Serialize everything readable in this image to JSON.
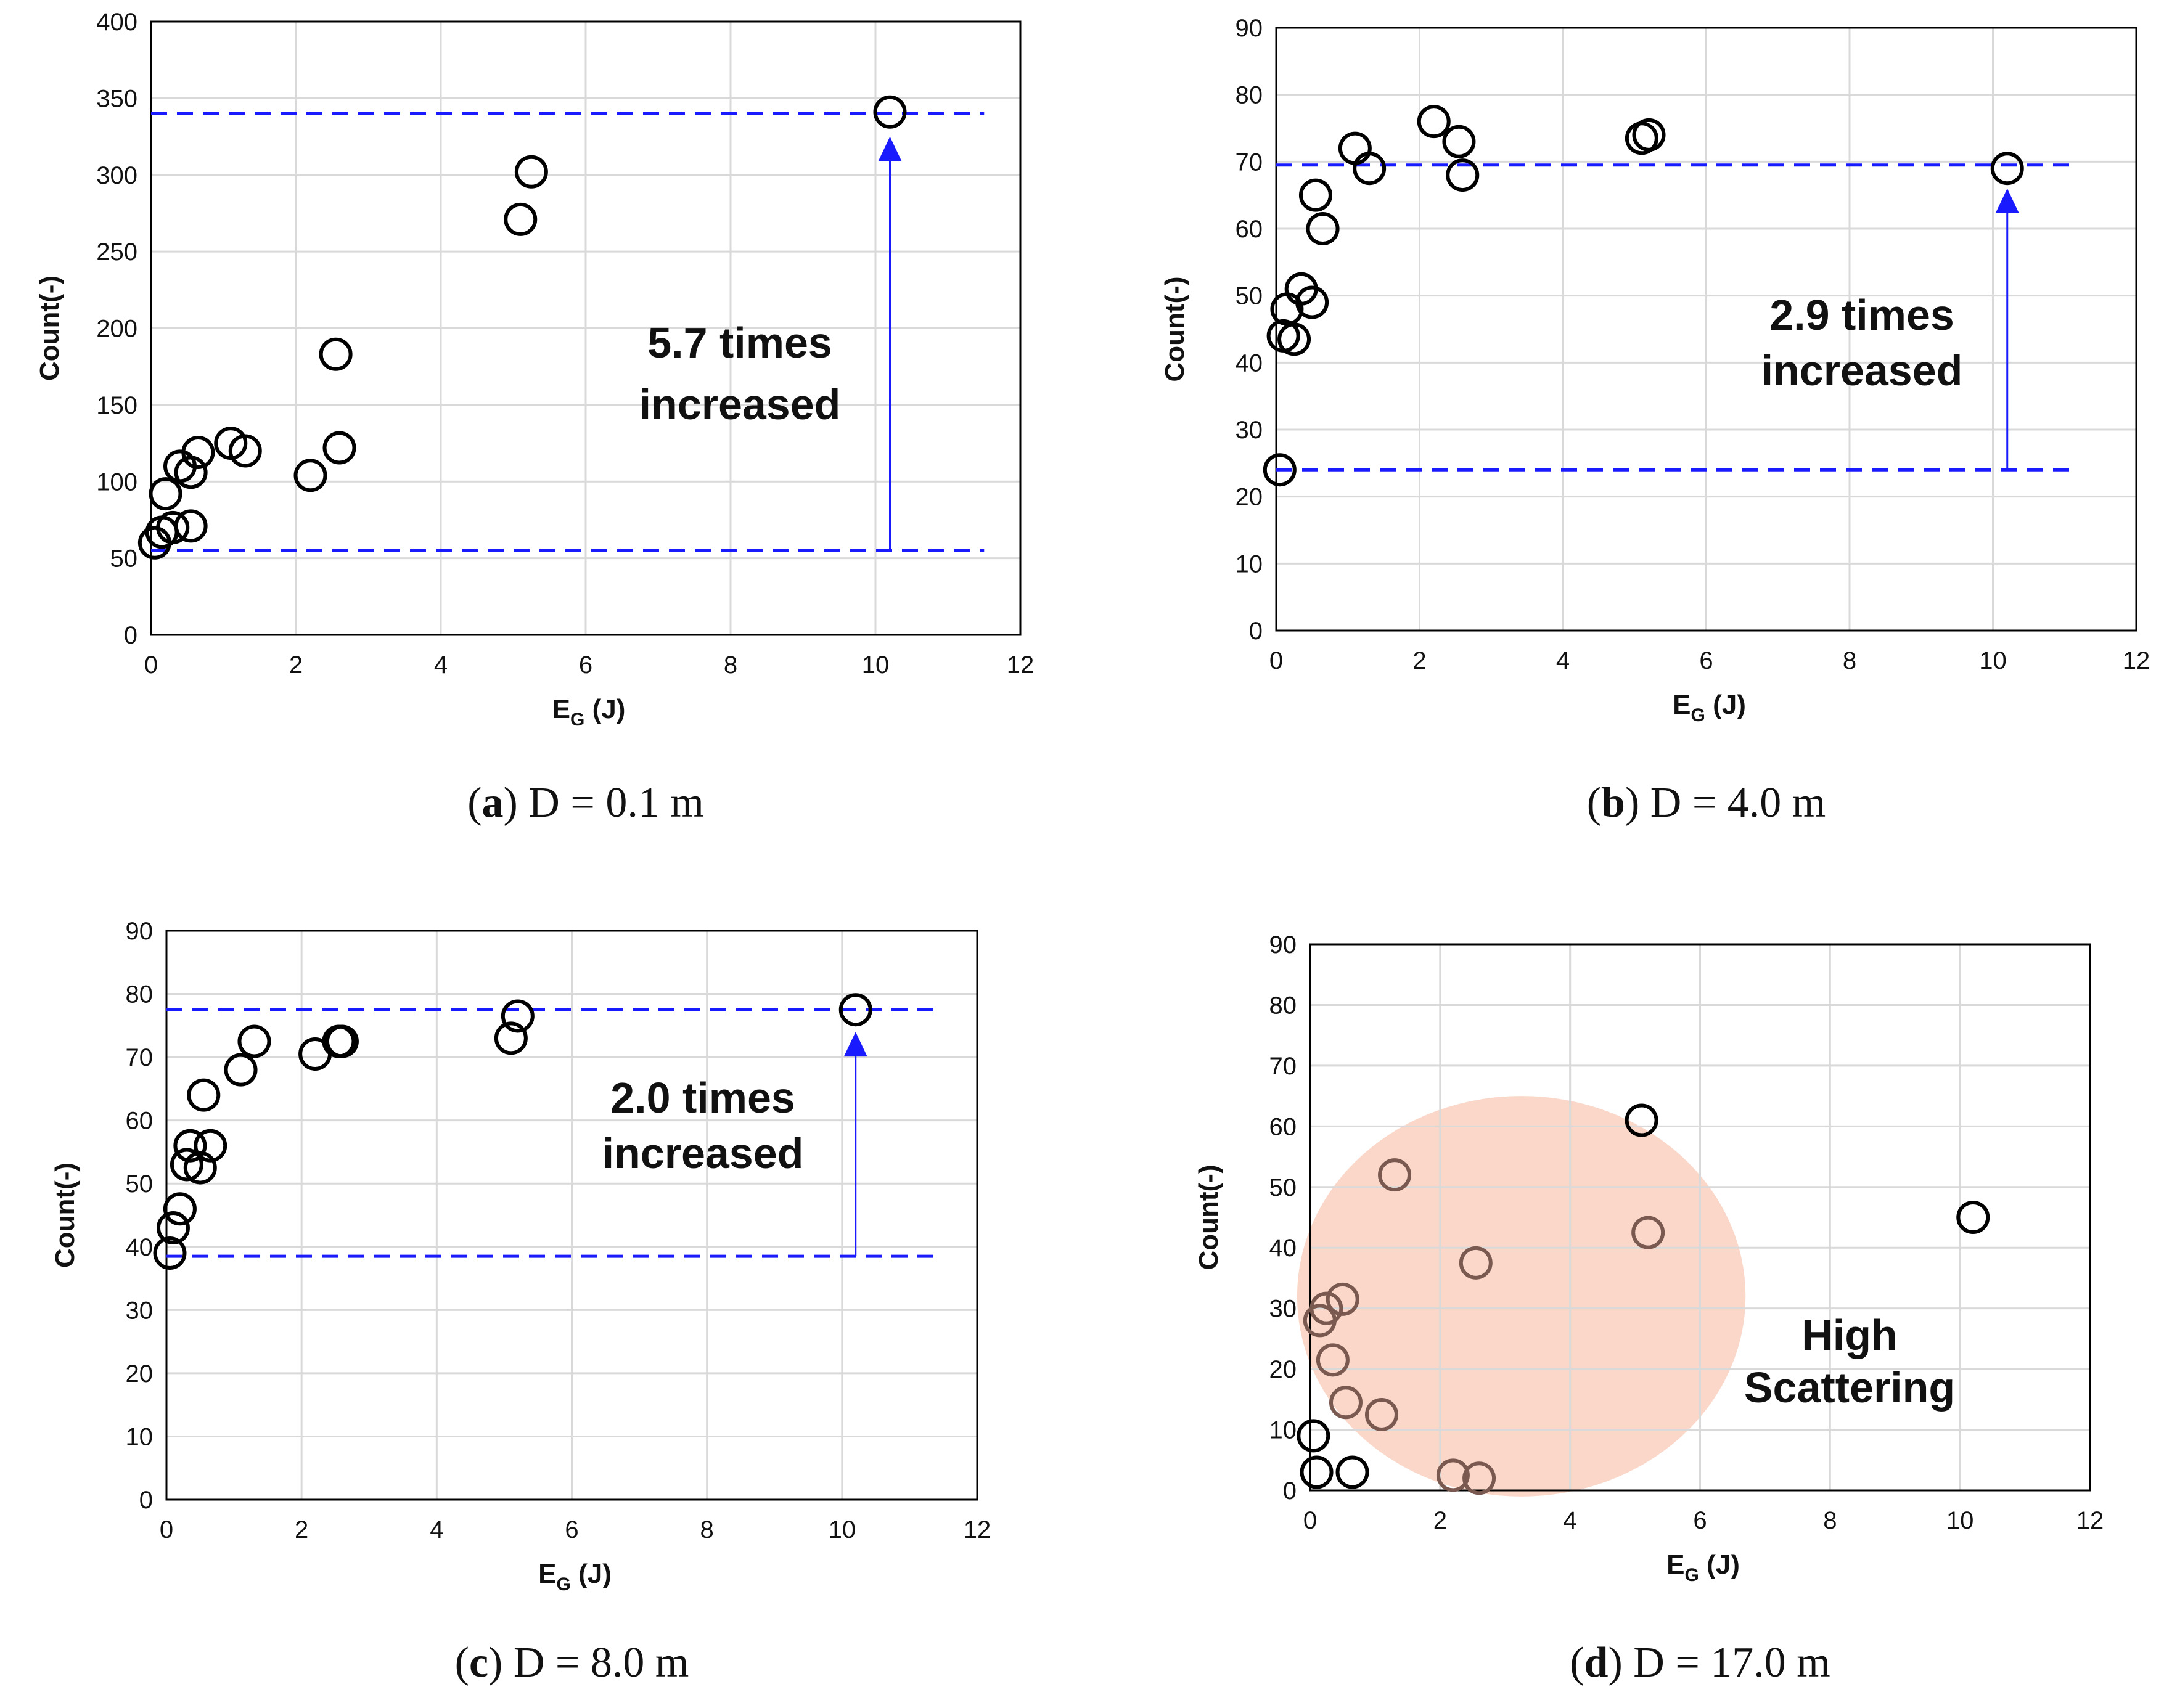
{
  "chart_data": [
    {
      "panel": "a",
      "type": "scatter",
      "xlabel": "E",
      "xlabel_sub": "G",
      "xlabel_unit": " (J)",
      "ylabel": "Count(-)",
      "xlim": [
        0,
        12
      ],
      "ylim": [
        0,
        400
      ],
      "xticks": [
        "0",
        "2",
        "4",
        "6",
        "8",
        "10",
        "12"
      ],
      "yticks": [
        "0",
        "50",
        "100",
        "150",
        "200",
        "250",
        "300",
        "350",
        "400"
      ],
      "x": [
        0.05,
        0.15,
        0.2,
        0.3,
        0.4,
        0.55,
        0.55,
        0.65,
        1.1,
        1.3,
        2.2,
        2.55,
        2.6,
        5.1,
        5.25,
        10.2
      ],
      "y": [
        60,
        67,
        92,
        70,
        110,
        106,
        71,
        119,
        125,
        120,
        104,
        183,
        122,
        271,
        302,
        341
      ],
      "point_colors": [],
      "ref_lines": [
        55,
        340
      ],
      "arrow": {
        "x": 10.2,
        "from": 55,
        "to": 325
      },
      "annotation": [
        "5.7 times",
        "increased"
      ],
      "caption_letter": "a",
      "caption_text": " D = 0.1 m"
    },
    {
      "panel": "b",
      "type": "scatter",
      "xlabel": "E",
      "xlabel_sub": "G",
      "xlabel_unit": " (J)",
      "ylabel": "Count(-)",
      "xlim": [
        0,
        12
      ],
      "ylim": [
        0,
        90
      ],
      "xticks": [
        "0",
        "2",
        "4",
        "6",
        "8",
        "10",
        "12"
      ],
      "yticks": [
        "0",
        "10",
        "20",
        "30",
        "40",
        "50",
        "60",
        "70",
        "80",
        "90"
      ],
      "x": [
        0.05,
        0.1,
        0.15,
        0.25,
        0.35,
        0.5,
        0.55,
        0.65,
        1.1,
        1.3,
        2.2,
        2.55,
        2.6,
        5.1,
        5.2,
        10.2
      ],
      "y": [
        24,
        44,
        48,
        43.5,
        51,
        49,
        65,
        60,
        72,
        69,
        76,
        73,
        68,
        73.5,
        74,
        69
      ],
      "point_colors": [],
      "ref_lines": [
        24,
        69.5
      ],
      "arrow": {
        "x": 10.2,
        "from": 24,
        "to": 66
      },
      "annotation": [
        "2.9 times",
        "increased"
      ],
      "caption_letter": "b",
      "caption_text": " D = 4.0 m"
    },
    {
      "panel": "c",
      "type": "scatter",
      "xlabel": "E",
      "xlabel_sub": "G",
      "xlabel_unit": " (J)",
      "ylabel": "Count(-)",
      "xlim": [
        0,
        12
      ],
      "ylim": [
        0,
        90
      ],
      "xticks": [
        "0",
        "2",
        "4",
        "6",
        "8",
        "10",
        "12"
      ],
      "yticks": [
        "0",
        "10",
        "20",
        "30",
        "40",
        "50",
        "60",
        "70",
        "80",
        "90"
      ],
      "x": [
        0.05,
        0.1,
        0.2,
        0.3,
        0.35,
        0.5,
        0.55,
        0.65,
        1.1,
        1.3,
        2.2,
        2.55,
        2.6,
        5.1,
        5.2,
        10.2
      ],
      "y": [
        39,
        43,
        46,
        53,
        56,
        52.5,
        64,
        56,
        68,
        72.5,
        70.5,
        72.5,
        72.5,
        73,
        76.5,
        77.5
      ],
      "point_colors": [],
      "ref_lines": [
        38.5,
        77.5
      ],
      "arrow": {
        "x": 10.2,
        "from": 38.5,
        "to": 74
      },
      "annotation": [
        "2.0 times",
        "increased"
      ],
      "caption_letter": "c",
      "caption_text": " D = 8.0 m"
    },
    {
      "panel": "d",
      "type": "scatter",
      "xlabel": "E",
      "xlabel_sub": "G",
      "xlabel_unit": " (J)",
      "ylabel": "Count(-)",
      "xlim": [
        0,
        12
      ],
      "ylim": [
        0,
        90
      ],
      "xticks": [
        "0",
        "2",
        "4",
        "6",
        "8",
        "10",
        "12"
      ],
      "yticks": [
        "0",
        "10",
        "20",
        "30",
        "40",
        "50",
        "60",
        "70",
        "80",
        "90"
      ],
      "x": [
        0.05,
        0.1,
        0.15,
        0.25,
        0.35,
        0.5,
        0.55,
        0.65,
        1.1,
        1.3,
        2.2,
        2.55,
        2.6,
        5.1,
        5.2,
        10.2
      ],
      "y": [
        9,
        3,
        28,
        30,
        21.5,
        31.5,
        14.5,
        3,
        12.5,
        52,
        2.5,
        37.5,
        2,
        61,
        42.5,
        45
      ],
      "point_colors": [
        "#000000",
        "#000000",
        "#7a5a50",
        "#7a5a50",
        "#7a5a50",
        "#7a5a50",
        "#7a5a50",
        "#000000",
        "#7a5a50",
        "#7a5a50",
        "#7a5a50",
        "#7a5a50",
        "#7a5a50",
        "#000000",
        "#7a5a50",
        "#000000"
      ],
      "ref_lines": [],
      "arrow": null,
      "scatter_region": {
        "cx": 3.25,
        "cy": 32,
        "rx": 3.45,
        "ry": 33,
        "color": "#f9d3c2"
      },
      "annotation": [
        "High",
        "Scattering"
      ],
      "caption_letter": "d",
      "caption_text": " D = 17.0 m"
    }
  ],
  "colors": {
    "reference_line": "#1a1aff",
    "arrow": "#1a1aff",
    "grid": "#d9d9d9",
    "marker": "#000000"
  }
}
